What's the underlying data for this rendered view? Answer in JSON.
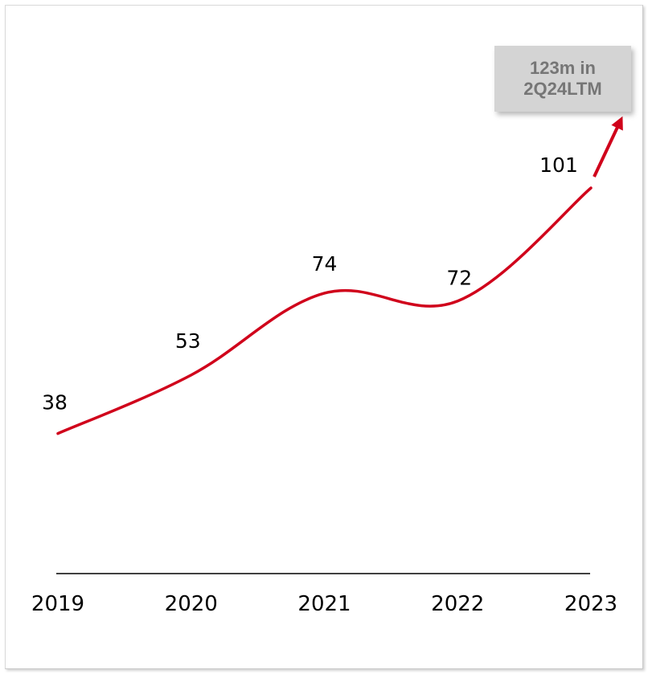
{
  "chart_data": {
    "type": "line",
    "x": [
      "2019",
      "2020",
      "2021",
      "2022",
      "2023"
    ],
    "series": [
      {
        "values": [
          38,
          53,
          74,
          72,
          101
        ]
      }
    ],
    "data_labels": [
      "38",
      "53",
      "74",
      "72",
      "101"
    ],
    "line_color": "#d0021b",
    "ylim": [
      0,
      130
    ],
    "grid": false,
    "annotation": {
      "line1": "123m in",
      "line2": "2Q24LTM",
      "value": 123,
      "background": "#d4d4d4",
      "text_color": "#767676"
    }
  }
}
